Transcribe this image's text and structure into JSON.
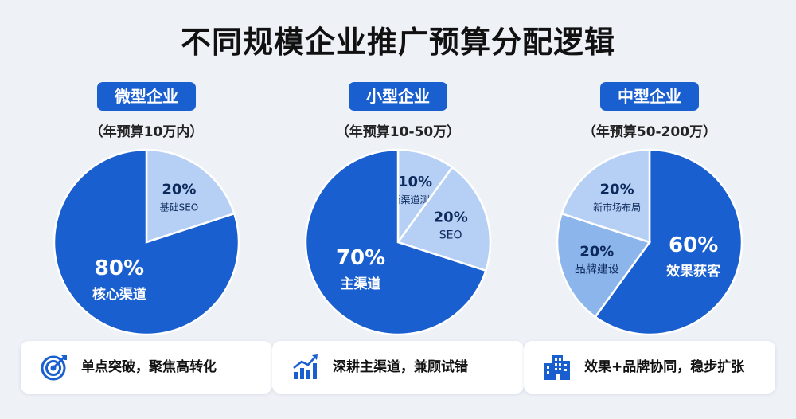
{
  "title": "不同规模企业推广预算分配逻辑",
  "colors": {
    "dark": "#1a5fd0",
    "mid": "#8cb5ec",
    "light": "#b5cff5"
  },
  "panels": [
    {
      "badge": "微型企业",
      "subtitle": "（年预算10万内）",
      "card_text": "单点突破，聚焦高转化",
      "icon": "target-icon"
    },
    {
      "badge": "小型企业",
      "subtitle": "（年预算10-50万）",
      "card_text": "深耕主渠道，兼顾试错",
      "icon": "growth-chart-icon"
    },
    {
      "badge": "中型企业",
      "subtitle": "（年预算50-200万）",
      "card_text": "效果+品牌协同，稳步扩张",
      "icon": "buildings-icon"
    }
  ],
  "chart_data": [
    {
      "type": "pie",
      "title": "微型企业",
      "slices": [
        {
          "label": "基础SEO",
          "value": 20,
          "display": "20%",
          "color": "#b5cff5"
        },
        {
          "label": "核心渠道",
          "value": 80,
          "display": "80%",
          "color": "#1a5fd0"
        }
      ]
    },
    {
      "type": "pie",
      "title": "小型企业",
      "slices": [
        {
          "label": "新渠道测试",
          "value": 10,
          "display": "10%",
          "color": "#b5cff5"
        },
        {
          "label": "SEO",
          "value": 20,
          "display": "20%",
          "color": "#b5cff5"
        },
        {
          "label": "主渠道",
          "value": 70,
          "display": "70%",
          "color": "#1a5fd0"
        }
      ]
    },
    {
      "type": "pie",
      "title": "中型企业",
      "slices": [
        {
          "label": "效果获客",
          "value": 60,
          "display": "60%",
          "color": "#1a5fd0"
        },
        {
          "label": "品牌建设",
          "value": 20,
          "display": "20%",
          "color": "#8cb5ec"
        },
        {
          "label": "新市场布局",
          "value": 20,
          "display": "20%",
          "color": "#b5cff5"
        }
      ]
    }
  ]
}
